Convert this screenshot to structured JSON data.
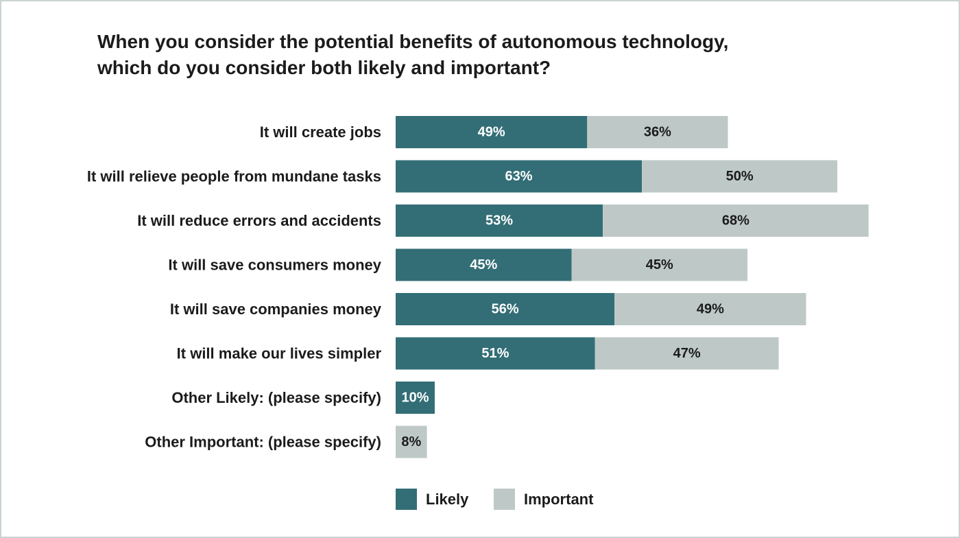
{
  "chart_data": {
    "type": "bar",
    "orientation": "horizontal",
    "stacked": true,
    "title": [
      "When you consider the potential benefits of autonomous technology,",
      "which do you consider both likely and important?"
    ],
    "categories": [
      "It will create jobs",
      "It will relieve people from mundane tasks",
      "It will reduce errors and accidents",
      "It will save consumers money",
      "It will save companies money",
      "It will make our lives simpler",
      "Other Likely: (please specify)",
      "Other Important: (please specify)"
    ],
    "series": [
      {
        "name": "Likely",
        "color": "#336e76",
        "text_color": "#ffffff",
        "values": [
          49,
          63,
          53,
          45,
          56,
          51,
          10,
          null
        ],
        "labels": [
          "49%",
          "63%",
          "53%",
          "45%",
          "56%",
          "51%",
          "10%",
          ""
        ]
      },
      {
        "name": "Important",
        "color": "#bec9c7",
        "text_color": "#1b1b1b",
        "values": [
          36,
          50,
          68,
          45,
          49,
          47,
          null,
          8
        ],
        "labels": [
          "36%",
          "50%",
          "68%",
          "45%",
          "49%",
          "47%",
          "",
          "8%"
        ]
      }
    ],
    "legend_position": "bottom"
  }
}
